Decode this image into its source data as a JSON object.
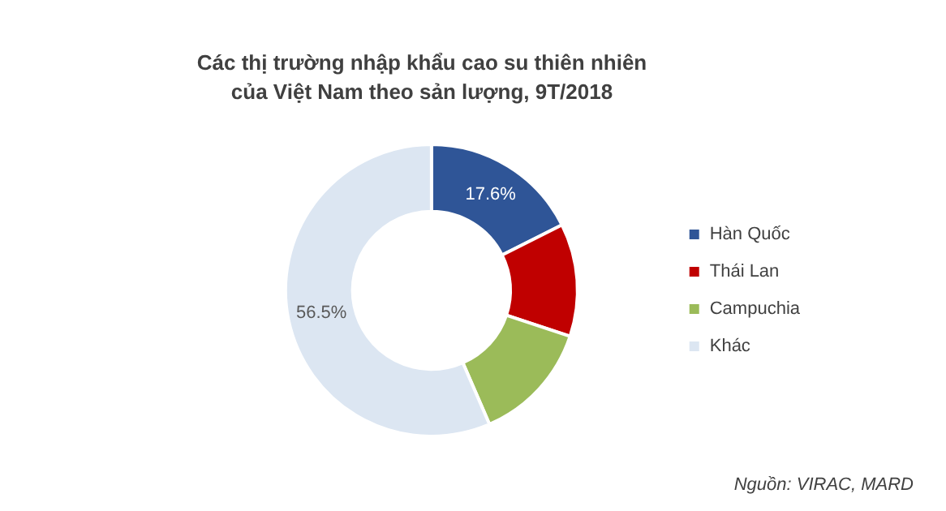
{
  "chart_data": {
    "type": "donut",
    "title": "Các thị trường nhập khẩu cao su thiên nhiên của Việt Nam theo sản lượng, 9T/2018",
    "categories": [
      "Hàn Quốc",
      "Thái Lan",
      "Campuchia",
      "Khác"
    ],
    "values": [
      17.6,
      12.5,
      13.4,
      56.5
    ],
    "colors": [
      "#2f5597",
      "#c00000",
      "#9bbb59",
      "#dce6f2"
    ],
    "value_labels": [
      "17.6%",
      null,
      null,
      "56.5%"
    ],
    "legend": "right",
    "annotations": [
      "Nguồn: VIRAC, MARD"
    ]
  }
}
